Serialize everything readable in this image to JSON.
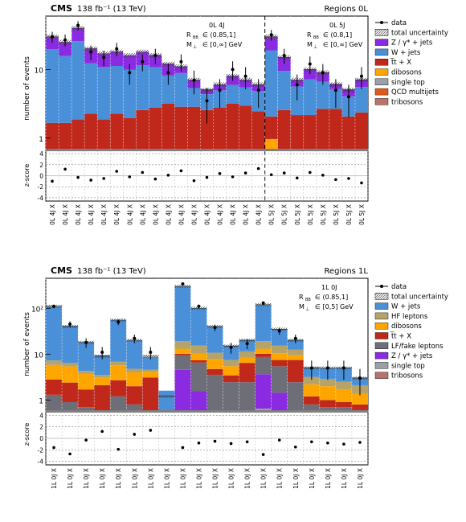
{
  "colors": {
    "data": "#000000",
    "total_uncertainty": "#555555",
    "z_gamma_jets": "#8A2BE2",
    "w_jets": "#4A90D9",
    "ttbar_x": "#C0281B",
    "dibosons": "#FFA500",
    "single_top": "#9AA0A6",
    "qcd_multijets": "#E05A1C",
    "tribosons": "#B9736A",
    "hf_leptons": "#B5A36A",
    "lf_fake_leptons": "#6E6E78"
  },
  "chart_data": [
    {
      "type": "bar",
      "stacked": true,
      "log_y": true,
      "header": {
        "cms": "CMS",
        "lumi": "138 fb⁻¹ (13 TeV)",
        "region": "Regions  0L"
      },
      "ylabel": "number of events",
      "yticks": [
        "1",
        "10"
      ],
      "annotations": [
        {
          "label": "0L 4J",
          "rbb": "R",
          "rbb_sub": "BB",
          "rbb_val": "∈ (0.85,1]",
          "mp": "M",
          "mp_sub": "⊥",
          "mp_val": "∈ [0,∞] GeV"
        },
        {
          "label": "0L 5J",
          "rbb": "R",
          "rbb_sub": "BB",
          "rbb_val": "∈ (0.8,1]",
          "mp": "M",
          "mp_sub": "⊥",
          "mp_val": "∈ [0,∞] GeV"
        }
      ],
      "legend": [
        "data",
        "total uncertainty",
        "Z / γ* + jets",
        "W + jets",
        "t̅t + X",
        "dibosons",
        "single top",
        "QCD multijets",
        "tribosons"
      ],
      "categories": [
        "4J",
        "4J",
        "4J",
        "4J",
        "4J",
        "4J",
        "4J",
        "4J",
        "4J",
        "4J",
        "4J",
        "4J",
        "4J",
        "4J",
        "4J",
        "4J",
        "4J",
        "5J",
        "5J",
        "5J",
        "5J",
        "5J",
        "5J",
        "5J",
        "5J"
      ],
      "x_tick_labels": [
        "0L 4J X",
        "0L 4J X",
        "0L 4J X",
        "0L 4J X",
        "0L 4J X",
        "0L 4J X",
        "0L 4J X",
        "0L 4J X",
        "0L 4J X",
        "0L 4J X",
        "0L 4J X",
        "0L 4J X",
        "0L 4J X",
        "0L 4J X",
        "0L 4J X",
        "0L 4J X",
        "0L 4J X",
        "0L 5J X",
        "0L 5J X",
        "0L 5J X",
        "0L 5J X",
        "0L 5J X",
        "0L 5J X",
        "0L 5J X",
        "0L 5J X"
      ],
      "total": [
        30,
        25,
        40,
        20,
        17,
        18,
        16,
        18,
        16,
        12,
        11,
        7,
        5,
        6,
        8,
        7,
        6,
        30,
        15,
        7,
        10,
        9,
        6,
        5,
        7
      ],
      "series": [
        {
          "name": "tribosons",
          "color_key": "tribosons",
          "values": [
            0.02,
            0.02,
            0.02,
            0.02,
            0.02,
            0.02,
            0.02,
            0.02,
            0.02,
            0.02,
            0.02,
            0.02,
            0.02,
            0.02,
            0.02,
            0.02,
            0.02,
            0.02,
            0.02,
            0.02,
            0.02,
            0.02,
            0.02,
            0.02,
            0.02
          ]
        },
        {
          "name": "QCD multijets",
          "color_key": "qcd_multijets",
          "values": [
            0.05,
            0.05,
            0.05,
            0.05,
            0.05,
            0.05,
            0.05,
            0.05,
            0.05,
            0.05,
            0.05,
            0.05,
            0.05,
            0.05,
            0.05,
            0.05,
            0.05,
            0.05,
            0.05,
            0.05,
            0.05,
            0.05,
            0.05,
            0.05,
            0.05
          ]
        },
        {
          "name": "single top",
          "color_key": "single_top",
          "values": [
            0.1,
            0.1,
            0.1,
            0.1,
            0.1,
            0.1,
            0.1,
            0.1,
            0.1,
            0.1,
            0.1,
            0.1,
            0.1,
            0.1,
            0.1,
            0.1,
            0.1,
            0.1,
            0.1,
            0.1,
            0.1,
            0.1,
            0.1,
            0.1,
            0.1
          ]
        },
        {
          "name": "dibosons",
          "color_key": "dibosons",
          "values": [
            0.4,
            0.3,
            0.3,
            0.3,
            0.2,
            0.2,
            0.2,
            0.2,
            0.2,
            0.2,
            0.2,
            0.2,
            0.2,
            0.2,
            0.2,
            0.2,
            0.2,
            0.8,
            0.3,
            0.2,
            0.3,
            0.3,
            0.2,
            0.2,
            0.2
          ]
        },
        {
          "name": "t̅t + X",
          "color_key": "ttbar_x",
          "values": [
            1.1,
            1.2,
            1.4,
            1.8,
            1.5,
            1.9,
            1.6,
            2.2,
            2.4,
            2.8,
            2.5,
            2.5,
            2.2,
            2.4,
            2.8,
            2.6,
            2.1,
            1.1,
            2.1,
            1.8,
            1.7,
            2.2,
            2.3,
            1.7,
            2.0
          ]
        },
        {
          "name": "W + jets",
          "color_key": "w_jets",
          "values": [
            18,
            14,
            24,
            10,
            9,
            9,
            8,
            9,
            8,
            5,
            6,
            2.5,
            1.8,
            2.2,
            2.8,
            2.5,
            2.4,
            17,
            7,
            3.5,
            5,
            4,
            2.5,
            2.0,
            3.2
          ]
        },
        {
          "name": "Z / γ* + jets",
          "color_key": "z_gamma_jets",
          "values": [
            10,
            9,
            14,
            8,
            6,
            7,
            6,
            6.5,
            5.5,
            4,
            2.2,
            1.7,
            0.8,
            1.1,
            2.1,
            1.6,
            1.2,
            11,
            5.5,
            1.4,
            2.9,
            2.4,
            1.0,
            1.1,
            1.6
          ]
        }
      ],
      "data": [
        30,
        27,
        44,
        18,
        15,
        20,
        9,
        13,
        16,
        9,
        13,
        7,
        3.5,
        5,
        10,
        8,
        5,
        32,
        16,
        6,
        12,
        9,
        5,
        4,
        8
      ],
      "zscore": {
        "ylabel": "z-score",
        "yticks": [
          "4",
          "2",
          "0",
          "-2",
          "-4"
        ],
        "values": [
          -1.0,
          1.2,
          -0.3,
          -0.8,
          -0.5,
          0.8,
          -0.2,
          0.6,
          -0.6,
          0.1,
          0.9,
          -0.9,
          -0.3,
          0.4,
          -0.2,
          0.5,
          1.3,
          0.2,
          0.5,
          -0.4,
          0.6,
          0.1,
          -0.7,
          -0.5,
          -1.3
        ]
      }
    },
    {
      "type": "bar",
      "stacked": true,
      "log_y": true,
      "header": {
        "cms": "CMS",
        "lumi": "138 fb⁻¹ (13 TeV)",
        "region": "Regions  1L"
      },
      "ylabel": "number of events",
      "yticks": [
        "1",
        "10",
        "10²"
      ],
      "annotations": [
        {
          "label": "1L 0J",
          "rbb": "R",
          "rbb_sub": "BB",
          "rbb_val": "∈ (0.85,1]",
          "mp": "M",
          "mp_sub": "⊥",
          "mp_val": "∈ [0,5] GeV"
        }
      ],
      "legend": [
        "data",
        "total uncertainty",
        "W + jets",
        "HF leptons",
        "dibosons",
        "t̅t + X",
        "LF/fake leptons",
        "Z / γ* + jets",
        "single top",
        "tribosons"
      ],
      "categories": [
        "1L 0J",
        "1L 0J",
        "1L 0J",
        "1L 0J",
        "1L 0J",
        "1L 0J",
        "1L 0J",
        "1L 0J",
        "1L 0J",
        "1L 0J",
        "1L 0J",
        "1L 0J",
        "1L 0J",
        "1L 0J",
        "1L 0J",
        "1L 0J",
        "1L 0J",
        "1L 0J",
        "1L 0J",
        "1L 0J"
      ],
      "x_tick_labels": [
        "1L 0J X",
        "1L 0J X",
        "1L 0J X",
        "1L 0J X",
        "1L 0J X",
        "1L 0J X",
        "1L 0J X",
        "1L 0J X",
        "1L 0J X",
        "1L 0J X",
        "1L 0J X",
        "1L 0J X",
        "1L 0J X",
        "1L 0J X",
        "1L 0J X",
        "1L 0J X",
        "1L 0J X",
        "1L 0J X",
        "1L 0J X",
        "1L 0J X"
      ],
      "total": [
        110,
        40,
        18,
        9,
        55,
        20,
        9,
        1.2,
        300,
        100,
        40,
        15,
        20,
        120,
        35,
        20,
        5,
        5,
        5,
        3
      ],
      "series": [
        {
          "name": "tribosons",
          "color_key": "tribosons",
          "values": [
            0.05,
            0.05,
            0.05,
            0.05,
            0.05,
            0.05,
            0.05,
            0.05,
            0.05,
            0.05,
            0.05,
            0.05,
            0.05,
            0.05,
            0.05,
            0.05,
            0.05,
            0.05,
            0.05,
            0.05
          ]
        },
        {
          "name": "single top",
          "color_key": "single_top",
          "values": [
            0.4,
            0.3,
            0.2,
            0.2,
            0.3,
            0.2,
            0.2,
            0.1,
            0.5,
            0.5,
            0.4,
            0.3,
            0.3,
            0.6,
            0.4,
            0.3,
            0.2,
            0.2,
            0.2,
            0.2
          ]
        },
        {
          "name": "Z / γ* + jets",
          "color_key": "z_gamma_jets",
          "values": [
            0.05,
            0.05,
            0.05,
            0.05,
            0.05,
            0.05,
            0.05,
            0.05,
            4,
            1,
            0.1,
            0.1,
            0.1,
            3,
            1,
            0.1,
            0.05,
            0.05,
            0.05,
            0.05
          ]
        },
        {
          "name": "LF/fake leptons",
          "color_key": "lf_fake_leptons",
          "values": [
            0.8,
            0.5,
            0.4,
            0.3,
            0.8,
            0.5,
            0.3,
            0.1,
            5,
            5,
            3,
            2,
            2,
            5,
            4,
            2,
            0.5,
            0.4,
            0.4,
            0.3
          ]
        },
        {
          "name": "t̅t + X",
          "color_key": "ttbar_x",
          "values": [
            1.5,
            1.5,
            1.0,
            1.5,
            1.5,
            1.2,
            2.5,
            0.1,
            0.6,
            0.8,
            1.2,
            1.0,
            4,
            1.5,
            2,
            5,
            0.4,
            0.3,
            0.2,
            0.2
          ]
        },
        {
          "name": "dibosons",
          "color_key": "dibosons",
          "values": [
            3,
            3,
            2,
            1,
            3,
            2,
            1,
            0.1,
            3,
            3,
            3,
            2,
            2,
            3,
            3,
            2,
            1,
            1,
            0.8,
            0.6
          ]
        },
        {
          "name": "HF leptons",
          "color_key": "hf_leptons",
          "values": [
            1.5,
            1.0,
            0.6,
            0.4,
            1.2,
            0.8,
            0.5,
            0.1,
            6,
            5,
            3,
            2,
            3,
            6,
            5,
            3,
            1.0,
            0.9,
            0.8,
            0.7
          ]
        },
        {
          "name": "W + jets",
          "color_key": "w_jets",
          "values": [
            100,
            35,
            14,
            6,
            48,
            15,
            4,
            1.0,
            280,
            85,
            30,
            8,
            9,
            100,
            20,
            8,
            2,
            2,
            2.5,
            1.0
          ]
        }
      ],
      "data": [
        110,
        45,
        18,
        11,
        50,
        22,
        11,
        null,
        340,
        110,
        38,
        14,
        17,
        130,
        32,
        22,
        5,
        5,
        5,
        3
      ],
      "zscore": {
        "ylabel": "z-score",
        "yticks": [
          "4",
          "2",
          "0",
          "-2",
          "-4"
        ],
        "values": [
          -1.6,
          -2.7,
          -0.3,
          1.2,
          -1.9,
          0.7,
          1.4,
          null,
          -1.6,
          -0.8,
          -0.5,
          -0.9,
          -0.6,
          -2.8,
          -0.3,
          -1.5,
          -0.6,
          -0.8,
          -1.0,
          -0.7
        ]
      }
    }
  ]
}
